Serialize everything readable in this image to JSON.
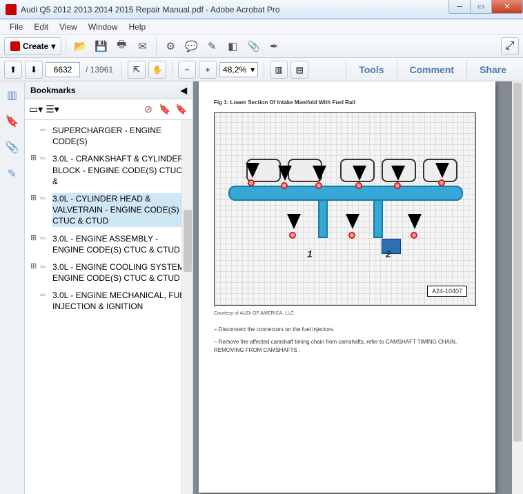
{
  "window": {
    "title": "Audi Q5 2012 2013 2014 2015 Repair Manual.pdf - Adobe Acrobat Pro"
  },
  "menu": {
    "file": "File",
    "edit": "Edit",
    "view": "View",
    "window": "Window",
    "help": "Help"
  },
  "toolbar": {
    "create": "Create"
  },
  "nav": {
    "page": "6632",
    "of": "/ 13961",
    "zoom": "48,2%",
    "tools": "Tools",
    "comment": "Comment",
    "share": "Share"
  },
  "bookmarks": {
    "title": "Bookmarks",
    "items": [
      {
        "label": "SUPERCHARGER - ENGINE CODE(S)",
        "sel": false,
        "partial": true
      },
      {
        "label": "3.0L - CRANKSHAFT & CYLINDER BLOCK - ENGINE CODE(S) CTUC &",
        "sel": false
      },
      {
        "label": "3.0L - CYLINDER HEAD & VALVETRAIN - ENGINE CODE(S) CTUC & CTUD",
        "sel": true
      },
      {
        "label": "3.0L - ENGINE ASSEMBLY - ENGINE CODE(S) CTUC & CTUD",
        "sel": false
      },
      {
        "label": "3.0L - ENGINE COOLING SYSTEM - ENGINE CODE(S) CTUC & CTUD",
        "sel": false
      },
      {
        "label": "3.0L - ENGINE MECHANICAL, FUEL INJECTION & IGNITION",
        "sel": false,
        "partial": true
      }
    ]
  },
  "doc": {
    "figtitle": "Fig 1: Lower Section Of Intake Manifold With Fuel Rail",
    "partno": "A24-10407",
    "num1": "1",
    "num2": "2",
    "courtesy": "Courtesy of AUDI OF AMERICA, LLC",
    "line1": "– Disconnect the connectors on the fuel injectors.",
    "line2": "– Remove the affected camshaft timing chain from camshafts, refer to CAMSHAFT TIMING CHAIN, REMOVING FROM CAMSHAFTS ."
  }
}
